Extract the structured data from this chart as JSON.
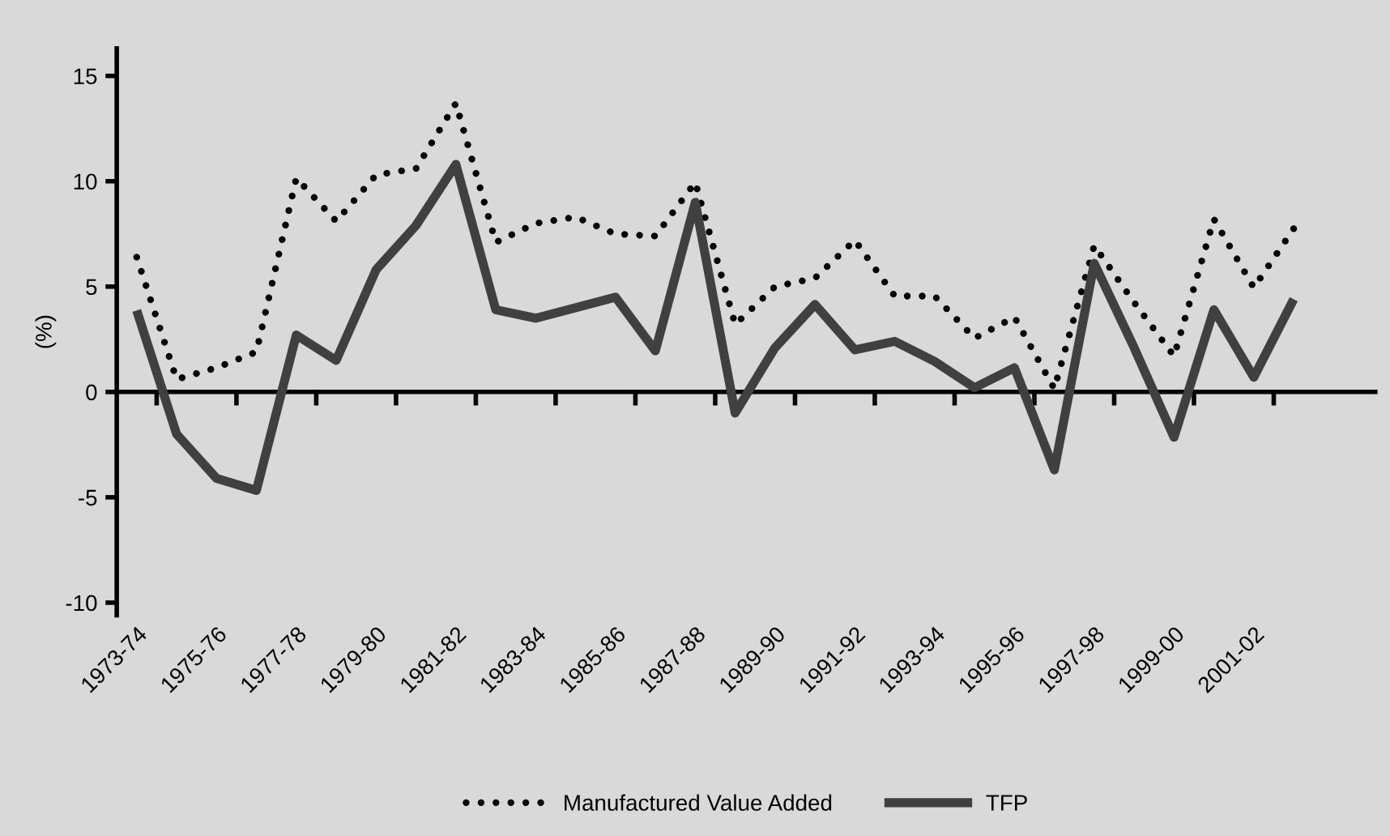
{
  "chart_data": {
    "type": "line",
    "ylabel": "(%)",
    "categories": [
      "1973-74",
      null,
      "1975-76",
      null,
      "1977-78",
      null,
      "1979-80",
      null,
      "1981-82",
      null,
      "1983-84",
      null,
      "1985-86",
      null,
      "1987-88",
      null,
      "1989-90",
      null,
      "1991-92",
      null,
      "1993-94",
      null,
      "1995-96",
      null,
      "1997-98",
      null,
      "1999-00",
      null,
      "2001-02",
      null
    ],
    "series": [
      {
        "name": "Manufactured Value Added",
        "color": "#000000",
        "line_style": "dotted",
        "values": [
          6.4,
          0.6,
          1.15,
          1.9,
          10.15,
          8.1,
          10.3,
          10.6,
          13.7,
          7.1,
          8.0,
          8.3,
          7.5,
          7.4,
          9.95,
          3.2,
          5.0,
          5.4,
          7.2,
          4.55,
          4.55,
          2.55,
          3.55,
          0.15,
          6.95,
          4.25,
          1.7,
          8.2,
          4.95,
          7.75
        ]
      },
      {
        "name": "TFP",
        "color": "#404040",
        "line_style": "solid",
        "values": [
          3.87,
          -2.0,
          -4.1,
          -4.67,
          2.7,
          1.5,
          5.8,
          7.9,
          10.8,
          3.9,
          3.5,
          4.0,
          4.5,
          1.95,
          9.0,
          -1.0,
          2.1,
          4.15,
          2.0,
          2.4,
          1.45,
          0.2,
          1.15,
          -3.7,
          6.1,
          2.1,
          -2.15,
          3.9,
          0.7,
          4.4
        ]
      }
    ],
    "ylim": [
      -10.6,
      16.3
    ],
    "yticks": [
      -10,
      -5,
      0,
      5,
      10,
      15
    ],
    "ref_lines": [
      {
        "axis": "y",
        "value": 0,
        "color": "#000000",
        "line_style": "solid"
      }
    ],
    "grid": false,
    "legend": "bottom",
    "marker": "none"
  }
}
